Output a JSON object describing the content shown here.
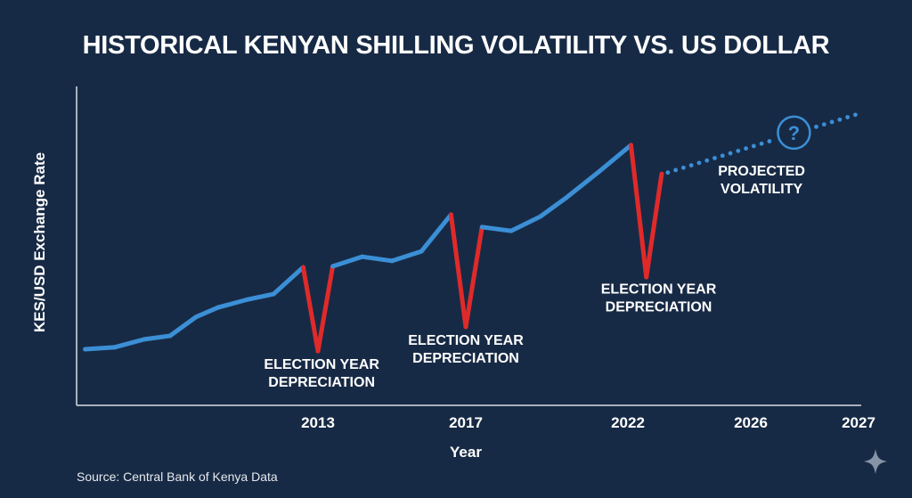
{
  "chart_data": {
    "type": "line",
    "title": "HISTORICAL KENYAN SHILLING VOLATILITY VS. US DOLLAR",
    "xlabel": "Year",
    "ylabel": "KES/USD Exchange Rate",
    "x_ticks": [
      {
        "year": 2013,
        "label": "2013"
      },
      {
        "year": 2017,
        "label": "2017"
      },
      {
        "year": 2022,
        "label": "2022"
      },
      {
        "year": 2026,
        "label": "2026"
      },
      {
        "year": 2027,
        "label": "2027"
      }
    ],
    "xlim": [
      2006.0,
      2027.1
    ],
    "ylim": [
      0,
      100
    ],
    "y_units": "relative (no tick values shown)",
    "grid": false,
    "series": [
      {
        "name": "Historical rate",
        "color": "#3b8fd6",
        "points": [
          {
            "x": 2006.7,
            "y": 17.6,
            "kind": "normal"
          },
          {
            "x": 2007.5,
            "y": 18.2,
            "kind": "normal"
          },
          {
            "x": 2008.3,
            "y": 20.7,
            "kind": "normal"
          },
          {
            "x": 2009.0,
            "y": 21.8,
            "kind": "normal"
          },
          {
            "x": 2009.7,
            "y": 27.7,
            "kind": "normal"
          },
          {
            "x": 2010.3,
            "y": 30.7,
            "kind": "normal"
          },
          {
            "x": 2011.1,
            "y": 33.2,
            "kind": "normal"
          },
          {
            "x": 2011.8,
            "y": 34.9,
            "kind": "normal"
          },
          {
            "x": 2012.6,
            "y": 43.3,
            "kind": "normal"
          },
          {
            "x": 2013.0,
            "y": 17.0,
            "kind": "election"
          },
          {
            "x": 2013.4,
            "y": 43.6,
            "kind": "normal"
          },
          {
            "x": 2014.2,
            "y": 46.6,
            "kind": "normal"
          },
          {
            "x": 2015.0,
            "y": 45.3,
            "kind": "normal"
          },
          {
            "x": 2015.8,
            "y": 48.3,
            "kind": "normal"
          },
          {
            "x": 2016.6,
            "y": 59.8,
            "kind": "normal"
          },
          {
            "x": 2017.0,
            "y": 24.6,
            "kind": "election"
          },
          {
            "x": 2017.5,
            "y": 55.9,
            "kind": "normal"
          },
          {
            "x": 2018.4,
            "y": 54.7,
            "kind": "normal"
          },
          {
            "x": 2019.3,
            "y": 59.2,
            "kind": "normal"
          },
          {
            "x": 2020.1,
            "y": 65.1,
            "kind": "normal"
          },
          {
            "x": 2021.1,
            "y": 73.2,
            "kind": "normal"
          },
          {
            "x": 2022.1,
            "y": 81.6,
            "kind": "normal"
          },
          {
            "x": 2022.6,
            "y": 40.2,
            "kind": "election"
          },
          {
            "x": 2023.1,
            "y": 72.6,
            "kind": "normal"
          }
        ]
      },
      {
        "name": "Projected volatility",
        "color": "#3b8fd6",
        "style": "dotted",
        "points": [
          {
            "x": 2023.3,
            "y": 73.0
          },
          {
            "x": 2026.97,
            "y": 91.1
          }
        ]
      }
    ],
    "election_color": "#e02a2a",
    "annotations": [
      {
        "lines": [
          "ELECTION YEAR",
          "DEPRECIATION"
        ],
        "x": 2013.1,
        "y": 11.5
      },
      {
        "lines": [
          "ELECTION YEAR",
          "DEPRECIATION"
        ],
        "x": 2017.0,
        "y": 19.0
      },
      {
        "lines": [
          "ELECTION YEAR",
          "DEPRECIATION"
        ],
        "x": 2023.0,
        "y": 35.0
      },
      {
        "lines": [
          "PROJECTED",
          "VOLATILITY"
        ],
        "x": 2026.1,
        "y": 72.0
      }
    ],
    "projection_marker": {
      "icon": "question-mark-circle-icon",
      "glyph": "?",
      "x": 2026.4,
      "y": 85.5
    },
    "source": "Source: Central Bank of Kenya Data"
  },
  "footer": {
    "watermark_icon": "sparkle-icon"
  }
}
